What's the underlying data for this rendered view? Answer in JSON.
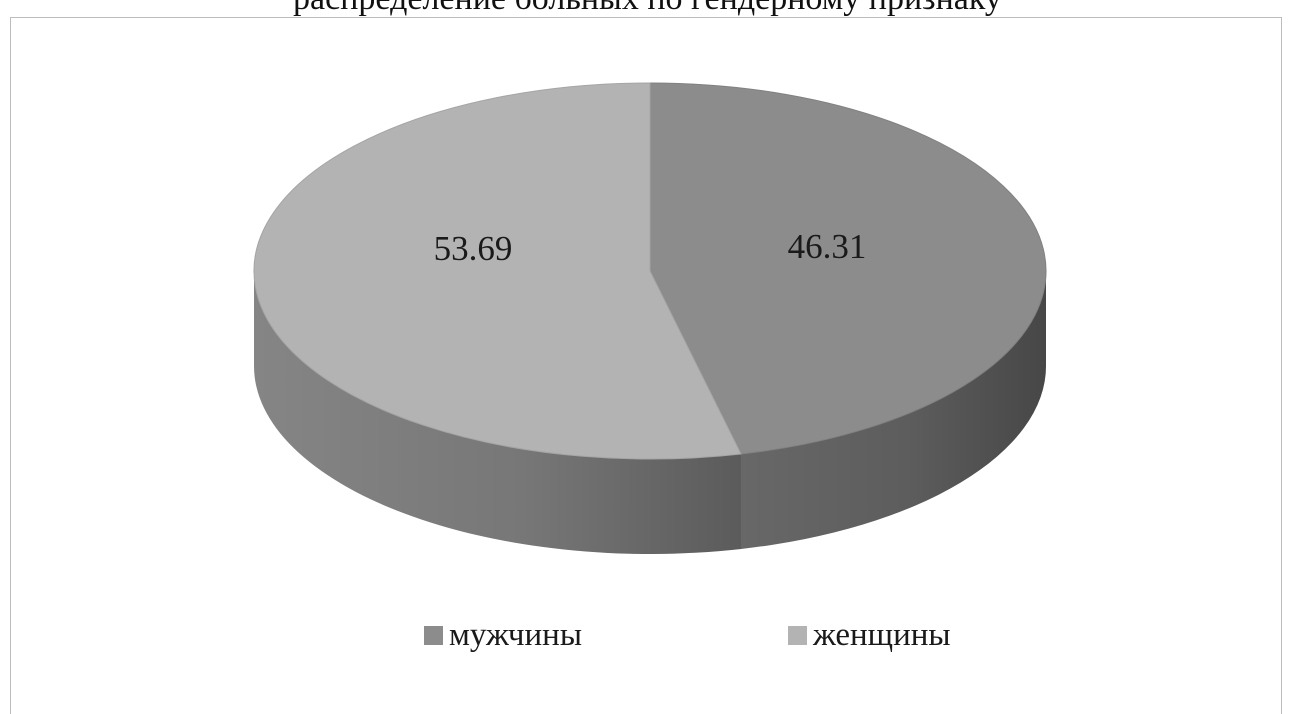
{
  "caption_fragment": "распределение больных по гендерному признаку",
  "chart_data": {
    "type": "pie",
    "style": "3d",
    "categories": [
      "мужчины",
      "женщины"
    ],
    "values": [
      46.31,
      53.69
    ],
    "data_labels": [
      "46.31",
      "53.69"
    ],
    "colors": [
      "#8c8c8c",
      "#b3b3b3"
    ],
    "legend": {
      "position": "bottom",
      "entries": [
        "мужчины",
        "женщины"
      ]
    },
    "start_angle": "12 o'clock",
    "direction": "clockwise"
  }
}
